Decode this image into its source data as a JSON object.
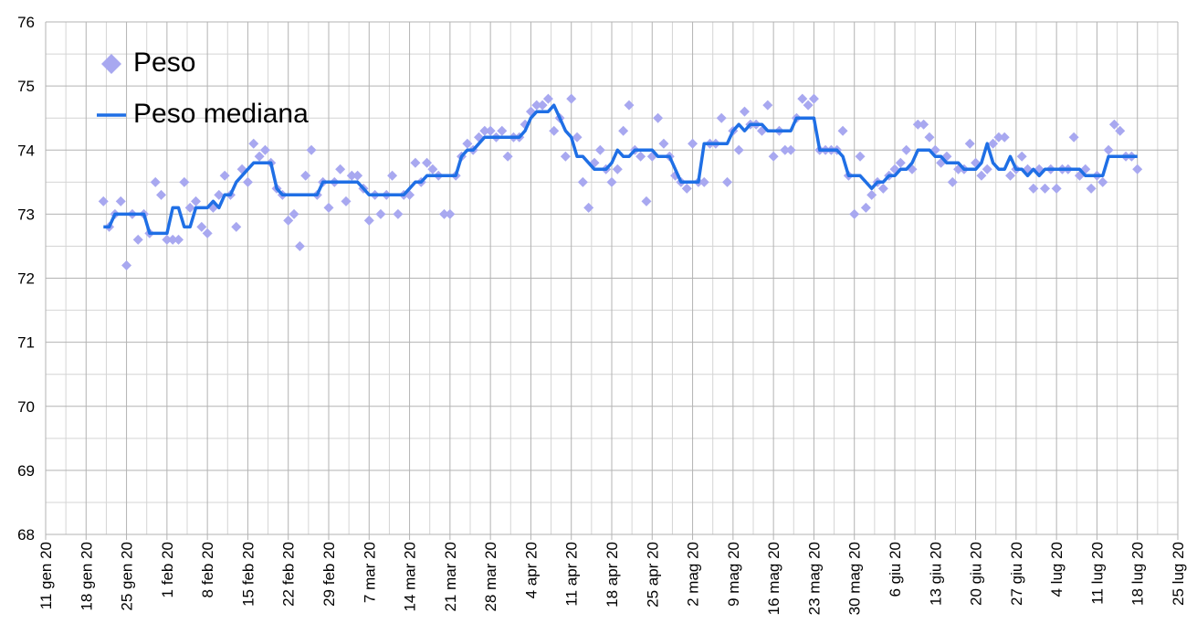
{
  "chart_data": {
    "type": "scatter-line",
    "x": [
      "2020-01-21",
      "2020-01-22",
      "2020-01-23",
      "2020-01-24",
      "2020-01-25",
      "2020-01-26",
      "2020-01-27",
      "2020-01-28",
      "2020-01-29",
      "2020-01-30",
      "2020-01-31",
      "2020-02-01",
      "2020-02-02",
      "2020-02-03",
      "2020-02-04",
      "2020-02-05",
      "2020-02-06",
      "2020-02-07",
      "2020-02-08",
      "2020-02-09",
      "2020-02-10",
      "2020-02-11",
      "2020-02-12",
      "2020-02-13",
      "2020-02-14",
      "2020-02-15",
      "2020-02-16",
      "2020-02-17",
      "2020-02-18",
      "2020-02-19",
      "2020-02-20",
      "2020-02-21",
      "2020-02-22",
      "2020-02-23",
      "2020-02-24",
      "2020-02-25",
      "2020-02-26",
      "2020-02-27",
      "2020-02-28",
      "2020-02-29",
      "2020-03-01",
      "2020-03-02",
      "2020-03-03",
      "2020-03-04",
      "2020-03-05",
      "2020-03-06",
      "2020-03-07",
      "2020-03-08",
      "2020-03-09",
      "2020-03-10",
      "2020-03-11",
      "2020-03-12",
      "2020-03-13",
      "2020-03-14",
      "2020-03-15",
      "2020-03-16",
      "2020-03-17",
      "2020-03-18",
      "2020-03-19",
      "2020-03-20",
      "2020-03-21",
      "2020-03-22",
      "2020-03-23",
      "2020-03-24",
      "2020-03-25",
      "2020-03-26",
      "2020-03-27",
      "2020-03-28",
      "2020-03-29",
      "2020-03-30",
      "2020-03-31",
      "2020-04-01",
      "2020-04-02",
      "2020-04-03",
      "2020-04-04",
      "2020-04-05",
      "2020-04-06",
      "2020-04-07",
      "2020-04-08",
      "2020-04-09",
      "2020-04-10",
      "2020-04-11",
      "2020-04-12",
      "2020-04-13",
      "2020-04-14",
      "2020-04-15",
      "2020-04-16",
      "2020-04-17",
      "2020-04-18",
      "2020-04-19",
      "2020-04-20",
      "2020-04-21",
      "2020-04-22",
      "2020-04-23",
      "2020-04-24",
      "2020-04-25",
      "2020-04-26",
      "2020-04-27",
      "2020-04-28",
      "2020-04-29",
      "2020-04-30",
      "2020-05-01",
      "2020-05-02",
      "2020-05-03",
      "2020-05-04",
      "2020-05-05",
      "2020-05-06",
      "2020-05-07",
      "2020-05-08",
      "2020-05-09",
      "2020-05-10",
      "2020-05-11",
      "2020-05-12",
      "2020-05-13",
      "2020-05-14",
      "2020-05-15",
      "2020-05-16",
      "2020-05-17",
      "2020-05-18",
      "2020-05-19",
      "2020-05-20",
      "2020-05-21",
      "2020-05-22",
      "2020-05-23",
      "2020-05-24",
      "2020-05-25",
      "2020-05-26",
      "2020-05-27",
      "2020-05-28",
      "2020-05-29",
      "2020-05-30",
      "2020-05-31",
      "2020-06-01",
      "2020-06-02",
      "2020-06-03",
      "2020-06-04",
      "2020-06-05",
      "2020-06-06",
      "2020-06-07",
      "2020-06-08",
      "2020-06-09",
      "2020-06-10",
      "2020-06-11",
      "2020-06-12",
      "2020-06-13",
      "2020-06-14",
      "2020-06-15",
      "2020-06-16",
      "2020-06-17",
      "2020-06-18",
      "2020-06-19",
      "2020-06-20",
      "2020-06-21",
      "2020-06-22",
      "2020-06-23",
      "2020-06-24",
      "2020-06-25",
      "2020-06-26",
      "2020-06-27",
      "2020-06-28",
      "2020-06-29",
      "2020-06-30",
      "2020-07-01",
      "2020-07-02",
      "2020-07-03",
      "2020-07-04",
      "2020-07-05",
      "2020-07-06",
      "2020-07-07",
      "2020-07-08",
      "2020-07-09",
      "2020-07-10",
      "2020-07-11",
      "2020-07-12",
      "2020-07-13",
      "2020-07-14",
      "2020-07-15",
      "2020-07-16",
      "2020-07-17",
      "2020-07-18"
    ],
    "series": [
      {
        "name": "Peso",
        "kind": "scatter",
        "color": "#a8a8f0",
        "values": [
          73.2,
          72.8,
          73.0,
          73.2,
          72.2,
          73.0,
          72.6,
          73.0,
          72.7,
          73.5,
          73.3,
          72.6,
          72.6,
          72.6,
          73.5,
          73.1,
          73.2,
          72.8,
          72.7,
          73.1,
          73.3,
          73.6,
          73.3,
          72.8,
          73.7,
          73.5,
          74.1,
          73.9,
          74.0,
          73.8,
          73.4,
          73.3,
          72.9,
          73.0,
          72.5,
          73.6,
          74.0,
          73.3,
          73.5,
          73.1,
          73.5,
          73.7,
          73.2,
          73.6,
          73.6,
          73.4,
          72.9,
          73.3,
          73.0,
          73.3,
          73.6,
          73.0,
          73.3,
          73.3,
          73.8,
          73.5,
          73.8,
          73.7,
          73.6,
          73.0,
          73.0,
          73.6,
          73.9,
          74.1,
          74.0,
          74.2,
          74.3,
          74.3,
          74.2,
          74.3,
          73.9,
          74.2,
          74.2,
          74.4,
          74.6,
          74.7,
          74.7,
          74.8,
          74.3,
          74.5,
          73.9,
          74.8,
          74.2,
          73.5,
          73.1,
          73.8,
          74.0,
          73.7,
          73.5,
          73.7,
          74.3,
          74.7,
          74.0,
          73.9,
          73.2,
          73.9,
          74.5,
          74.1,
          73.9,
          73.6,
          73.5,
          73.4,
          74.1,
          73.5,
          73.5,
          74.1,
          74.1,
          74.5,
          73.5,
          74.3,
          74.0,
          74.6,
          74.4,
          74.4,
          74.3,
          74.7,
          73.9,
          74.3,
          74.0,
          74.0,
          74.5,
          74.8,
          74.7,
          74.8,
          74.0,
          74.0,
          74.0,
          74.0,
          74.3,
          73.6,
          73.0,
          73.9,
          73.1,
          73.3,
          73.5,
          73.4,
          73.6,
          73.7,
          73.8,
          74.0,
          73.7,
          74.4,
          74.4,
          74.2,
          74.0,
          73.8,
          73.9,
          73.5,
          73.7,
          73.7,
          74.1,
          73.8,
          73.6,
          73.7,
          74.1,
          74.2,
          74.2,
          73.6,
          73.7,
          73.9,
          73.7,
          73.4,
          73.7,
          73.4,
          73.7,
          73.4,
          73.7,
          73.7,
          74.2,
          73.6,
          73.7,
          73.4,
          73.6,
          73.5,
          74.0,
          74.4,
          74.3,
          73.9,
          73.9,
          73.7
        ]
      },
      {
        "name": "Peso mediana",
        "kind": "line",
        "color": "#1f6fe5",
        "values": [
          72.8,
          72.8,
          73.0,
          73.0,
          73.0,
          73.0,
          73.0,
          73.0,
          72.7,
          72.7,
          72.7,
          72.7,
          73.1,
          73.1,
          72.8,
          72.8,
          73.1,
          73.1,
          73.1,
          73.2,
          73.1,
          73.3,
          73.3,
          73.5,
          73.6,
          73.7,
          73.8,
          73.8,
          73.8,
          73.8,
          73.4,
          73.3,
          73.3,
          73.3,
          73.3,
          73.3,
          73.3,
          73.3,
          73.5,
          73.5,
          73.5,
          73.5,
          73.5,
          73.5,
          73.5,
          73.4,
          73.3,
          73.3,
          73.3,
          73.3,
          73.3,
          73.3,
          73.3,
          73.4,
          73.5,
          73.5,
          73.6,
          73.6,
          73.6,
          73.6,
          73.6,
          73.6,
          73.9,
          74.0,
          74.0,
          74.1,
          74.2,
          74.2,
          74.2,
          74.2,
          74.2,
          74.2,
          74.2,
          74.3,
          74.5,
          74.6,
          74.6,
          74.6,
          74.7,
          74.5,
          74.3,
          74.2,
          73.9,
          73.9,
          73.8,
          73.7,
          73.7,
          73.7,
          73.8,
          74.0,
          73.9,
          73.9,
          74.0,
          74.0,
          74.0,
          74.0,
          73.9,
          73.9,
          73.9,
          73.7,
          73.5,
          73.5,
          73.5,
          73.5,
          74.1,
          74.1,
          74.1,
          74.1,
          74.1,
          74.3,
          74.4,
          74.3,
          74.4,
          74.4,
          74.4,
          74.3,
          74.3,
          74.3,
          74.3,
          74.3,
          74.5,
          74.5,
          74.5,
          74.5,
          74.0,
          74.0,
          74.0,
          74.0,
          73.9,
          73.6,
          73.6,
          73.6,
          73.5,
          73.4,
          73.5,
          73.5,
          73.6,
          73.6,
          73.7,
          73.7,
          73.8,
          74.0,
          74.0,
          74.0,
          73.9,
          73.9,
          73.8,
          73.8,
          73.8,
          73.7,
          73.7,
          73.7,
          73.8,
          74.1,
          73.8,
          73.7,
          73.7,
          73.9,
          73.7,
          73.7,
          73.6,
          73.7,
          73.6,
          73.7,
          73.7,
          73.7,
          73.7,
          73.7,
          73.7,
          73.7,
          73.6,
          73.6,
          73.6,
          73.6,
          73.9,
          73.9,
          73.9,
          73.9,
          73.9,
          73.9
        ]
      }
    ],
    "xlim": [
      "2020-01-11",
      "2020-07-25"
    ],
    "xticks": [
      {
        "value": "2020-01-11",
        "label": "11 gen 20"
      },
      {
        "value": "2020-01-18",
        "label": "18 gen 20"
      },
      {
        "value": "2020-01-25",
        "label": "25 gen 20"
      },
      {
        "value": "2020-02-01",
        "label": "1 feb 20"
      },
      {
        "value": "2020-02-08",
        "label": "8 feb 20"
      },
      {
        "value": "2020-02-15",
        "label": "15 feb 20"
      },
      {
        "value": "2020-02-22",
        "label": "22 feb 20"
      },
      {
        "value": "2020-02-29",
        "label": "29 feb 20"
      },
      {
        "value": "2020-03-07",
        "label": "7 mar 20"
      },
      {
        "value": "2020-03-14",
        "label": "14 mar 20"
      },
      {
        "value": "2020-03-21",
        "label": "21 mar 20"
      },
      {
        "value": "2020-03-28",
        "label": "28 mar 20"
      },
      {
        "value": "2020-04-04",
        "label": "4 apr 20"
      },
      {
        "value": "2020-04-11",
        "label": "11 apr 20"
      },
      {
        "value": "2020-04-18",
        "label": "18 apr 20"
      },
      {
        "value": "2020-04-25",
        "label": "25 apr 20"
      },
      {
        "value": "2020-05-02",
        "label": "2 mag 20"
      },
      {
        "value": "2020-05-09",
        "label": "9 mag 20"
      },
      {
        "value": "2020-05-16",
        "label": "16 mag 20"
      },
      {
        "value": "2020-05-23",
        "label": "23 mag 20"
      },
      {
        "value": "2020-05-30",
        "label": "30 mag 20"
      },
      {
        "value": "2020-06-06",
        "label": "6 giu 20"
      },
      {
        "value": "2020-06-13",
        "label": "13 giu 20"
      },
      {
        "value": "2020-06-20",
        "label": "20 giu 20"
      },
      {
        "value": "2020-06-27",
        "label": "27 giu 20"
      },
      {
        "value": "2020-07-04",
        "label": "4 lug 20"
      },
      {
        "value": "2020-07-11",
        "label": "11 lug 20"
      },
      {
        "value": "2020-07-18",
        "label": "18 lug 20"
      },
      {
        "value": "2020-07-25",
        "label": "25 lug 20"
      }
    ],
    "ylim": [
      68,
      76
    ],
    "yticks": [
      68,
      69,
      70,
      71,
      72,
      73,
      74,
      75,
      76
    ],
    "grid": true,
    "legend": "upper left"
  }
}
